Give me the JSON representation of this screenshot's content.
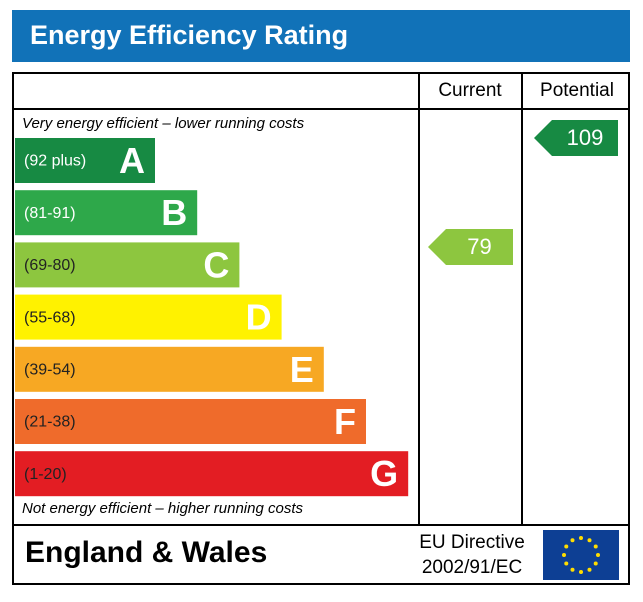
{
  "title": "Energy Efficiency Rating",
  "columns": [
    "Current",
    "Potential"
  ],
  "top_note": "Very energy efficient – lower running costs",
  "bottom_note": "Not energy efficient – higher running costs",
  "bands": [
    {
      "range": "(92 plus)",
      "letter": "A",
      "color": "#178a43",
      "text_color": "#ffffff"
    },
    {
      "range": "(81-91)",
      "letter": "B",
      "color": "#2ea84a",
      "text_color": "#ffffff"
    },
    {
      "range": "(69-80)",
      "letter": "C",
      "color": "#8dc63f",
      "text_color": "#222222"
    },
    {
      "range": "(55-68)",
      "letter": "D",
      "color": "#fff200",
      "text_color": "#222222"
    },
    {
      "range": "(39-54)",
      "letter": "E",
      "color": "#f7a823",
      "text_color": "#222222"
    },
    {
      "range": "(21-38)",
      "letter": "F",
      "color": "#ef6b2b",
      "text_color": "#222222"
    },
    {
      "range": "(1-20)",
      "letter": "G",
      "color": "#e31d23",
      "text_color": "#222222"
    }
  ],
  "current": {
    "value": 79,
    "color": "#8dc63f"
  },
  "potential": {
    "value": 109,
    "color": "#178a43"
  },
  "footer": {
    "region": "England & Wales",
    "directive": [
      "EU Directive",
      "2002/91/EC"
    ]
  }
}
